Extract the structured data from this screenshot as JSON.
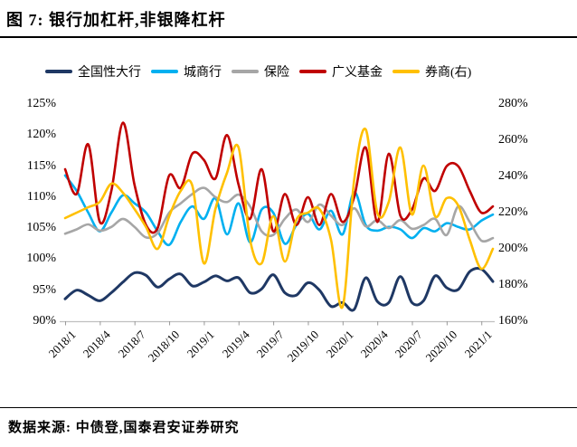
{
  "figure": {
    "title": "图 7: 银行加杠杆,非银降杠杆",
    "source": "数据来源: 中债登,国泰君安证券研究"
  },
  "colors": {
    "navy": "#1F3864",
    "cyan": "#00B0F0",
    "gray": "#A6A6A6",
    "red": "#C00000",
    "gold": "#FFC000",
    "axis_line": "#BFBFBF",
    "tick": "#999999",
    "text": "#000000"
  },
  "chart_data": {
    "type": "line",
    "title": "图 7: 银行加杠杆,非银降杠杆",
    "grid": false,
    "legend_position": "top",
    "x": [
      "2018/1",
      "2018/2",
      "2018/3",
      "2018/4",
      "2018/5",
      "2018/6",
      "2018/7",
      "2018/8",
      "2018/9",
      "2018/10",
      "2018/11",
      "2018/12",
      "2019/1",
      "2019/2",
      "2019/3",
      "2019/4",
      "2019/5",
      "2019/6",
      "2019/7",
      "2019/8",
      "2019/9",
      "2019/10",
      "2019/11",
      "2019/12",
      "2020/1",
      "2020/2",
      "2020/3",
      "2020/4",
      "2020/5",
      "2020/6",
      "2020/7",
      "2020/8",
      "2020/9",
      "2020/10",
      "2020/11",
      "2020/12",
      "2021/1",
      "2021/2"
    ],
    "x_tick_labels": [
      "2018/1",
      "2018/4",
      "2018/7",
      "2018/10",
      "2019/1",
      "2019/4",
      "2019/7",
      "2019/10",
      "2020/1",
      "2020/4",
      "2020/7",
      "2020/10",
      "2021/1"
    ],
    "left_axis": {
      "min": 90,
      "max": 125,
      "step": 5,
      "tick_labels": [
        "125%",
        "120%",
        "115%",
        "110%",
        "105%",
        "100%",
        "95%",
        "90%"
      ]
    },
    "right_axis": {
      "min": 160,
      "max": 280,
      "step": 20,
      "tick_labels": [
        "280%",
        "260%",
        "240%",
        "220%",
        "200%",
        "180%",
        "160%"
      ]
    },
    "series": [
      {
        "name": "全国性大行",
        "axis": "left",
        "color_key": "navy",
        "stroke_width": 3,
        "values": [
          93.6,
          95.0,
          94.2,
          93.3,
          94.6,
          96.3,
          97.8,
          97.4,
          95.5,
          96.8,
          97.6,
          95.7,
          96.3,
          97.3,
          96.5,
          97.0,
          94.6,
          95.2,
          97.5,
          94.6,
          94.2,
          96.2,
          95.0,
          92.4,
          93.0,
          91.9,
          97.0,
          93.2,
          93.0,
          97.2,
          93.0,
          93.3,
          97.3,
          95.4,
          95.1,
          98.0,
          98.4,
          96.4
        ]
      },
      {
        "name": "城商行",
        "axis": "left",
        "color_key": "cyan",
        "stroke_width": 2.6,
        "values": [
          113.5,
          111.0,
          107.5,
          104.5,
          107.5,
          110.3,
          109.0,
          107.5,
          104.5,
          102.3,
          106.0,
          108.5,
          106.5,
          109.8,
          104.0,
          109.0,
          102.7,
          108.0,
          107.5,
          102.5,
          105.5,
          107.3,
          104.8,
          107.8,
          104.0,
          110.8,
          105.5,
          104.6,
          105.2,
          104.8,
          103.4,
          105.0,
          104.5,
          105.8,
          105.2,
          104.8,
          106.2,
          107.2
        ]
      },
      {
        "name": "保险",
        "axis": "left",
        "color_key": "gray",
        "stroke_width": 2.6,
        "values": [
          104.1,
          104.8,
          105.6,
          104.6,
          105.2,
          106.5,
          105.2,
          103.5,
          104.2,
          107.5,
          109.0,
          110.5,
          111.5,
          110.0,
          109.2,
          110.4,
          108.5,
          104.5,
          103.9,
          106.5,
          108.0,
          106.0,
          108.8,
          107.0,
          105.5,
          108.2,
          105.3,
          106.3,
          105.0,
          106.3,
          104.9,
          105.5,
          106.5,
          103.9,
          108.5,
          106.0,
          103.0,
          103.4
        ]
      },
      {
        "name": "广义基金",
        "axis": "left",
        "color_key": "red",
        "stroke_width": 2.6,
        "values": [
          114.5,
          110.5,
          118.5,
          106.0,
          111.0,
          122.0,
          112.0,
          105.5,
          105.0,
          113.5,
          111.5,
          117.0,
          116.0,
          113.0,
          120.0,
          112.0,
          106.5,
          114.5,
          104.5,
          110.5,
          105.5,
          110.0,
          105.5,
          110.5,
          106.0,
          110.0,
          118.0,
          106.0,
          117.0,
          107.0,
          108.0,
          113.0,
          111.0,
          115.0,
          115.0,
          111.0,
          107.5,
          108.5
        ]
      },
      {
        "name": "券商(右)",
        "axis": "right",
        "color_key": "gold",
        "stroke_width": 2.6,
        "values": [
          217,
          220,
          223,
          226,
          236,
          231,
          222,
          212,
          200,
          218,
          232,
          235,
          192,
          222,
          242,
          256,
          205,
          192,
          218,
          193,
          216,
          220,
          222,
          205,
          168,
          238,
          266,
          220,
          226,
          256,
          219,
          246,
          218,
          228,
          224,
          205,
          189,
          200
        ]
      }
    ]
  },
  "layout_note": "monthly data 2018/1-2021/2, quarterly x ticks, no gridlines"
}
